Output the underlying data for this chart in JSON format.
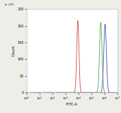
{
  "xlabel": "FITC-A",
  "ylabel": "Count",
  "y_multiplier_label": "(x 10¹)",
  "xlim": [
    1,
    10000000.0
  ],
  "ylim": [
    0,
    250
  ],
  "yticks": [
    0,
    50,
    100,
    150,
    200,
    250
  ],
  "ytick_labels": [
    "0",
    "50",
    "100",
    "150",
    "200",
    "250"
  ],
  "background_color": "#eeede8",
  "plot_bg_color": "#ffffff",
  "border_color": "#aaaaaa",
  "curves": [
    {
      "color": "#cc4444",
      "peak_x_log": 3.95,
      "sigma_log": 0.085,
      "peak_y": 215
    },
    {
      "color": "#44aa44",
      "peak_x_log": 5.72,
      "sigma_log": 0.095,
      "peak_y": 210
    },
    {
      "color": "#4444bb",
      "peak_x_log": 6.05,
      "sigma_log": 0.1,
      "peak_y": 205
    }
  ]
}
